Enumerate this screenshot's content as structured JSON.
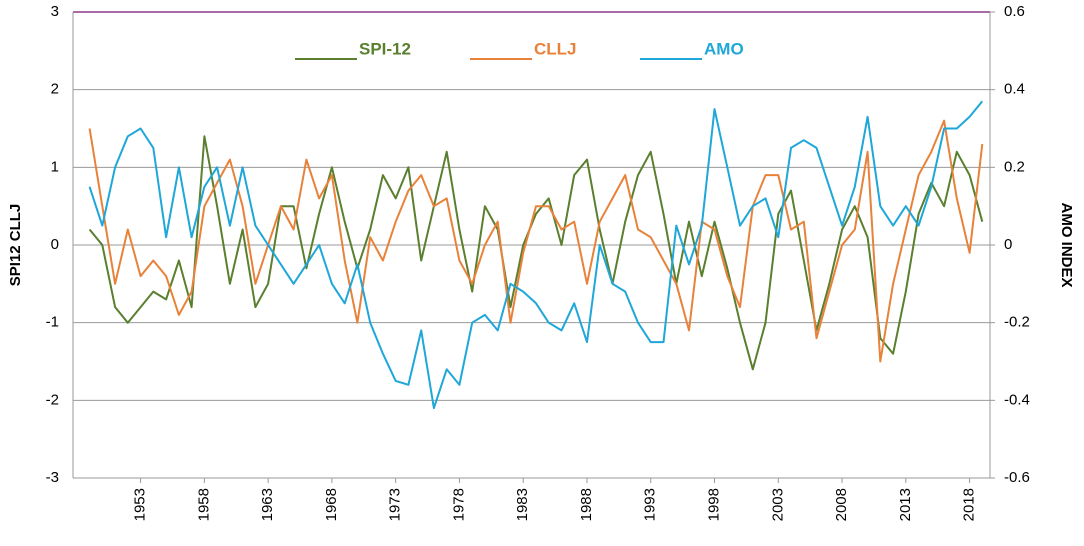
{
  "chart_data": {
    "type": "line",
    "y_label": "SPI12   CLLJ",
    "y2_label": "AMO INDEX",
    "legend": "top",
    "grid": true,
    "xlim": [
      1947.7,
      2019.6
    ],
    "xticks": [
      1953,
      1958,
      1963,
      1968,
      1973,
      1978,
      1983,
      1988,
      1993,
      1998,
      2003,
      2008,
      2013,
      2018
    ],
    "ylim": [
      -3,
      3
    ],
    "yticks": [
      -3,
      -2,
      -1,
      0,
      1,
      2,
      3
    ],
    "y2lim": [
      -0.6,
      0.6
    ],
    "y2ticks": [
      -0.6,
      -0.4,
      -0.2,
      0,
      0.2,
      0.4,
      0.6
    ],
    "x": [
      1949,
      1950,
      1951,
      1952,
      1953,
      1954,
      1955,
      1956,
      1957,
      1958,
      1959,
      1960,
      1961,
      1962,
      1963,
      1964,
      1965,
      1966,
      1967,
      1968,
      1969,
      1970,
      1971,
      1972,
      1973,
      1974,
      1975,
      1976,
      1977,
      1978,
      1979,
      1980,
      1981,
      1982,
      1983,
      1984,
      1985,
      1986,
      1987,
      1988,
      1989,
      1990,
      1991,
      1992,
      1993,
      1994,
      1995,
      1996,
      1997,
      1998,
      1999,
      2000,
      2001,
      2002,
      2003,
      2004,
      2005,
      2006,
      2007,
      2008,
      2009,
      2010,
      2011,
      2012,
      2013,
      2014,
      2015,
      2016,
      2017,
      2018,
      2019
    ],
    "series": [
      {
        "name": "SPI-12",
        "color": "#5a7f2e",
        "axis": "y",
        "values": [
          0.2,
          0,
          -0.8,
          -1.0,
          -0.8,
          -0.6,
          -0.7,
          -0.2,
          -0.8,
          1.4,
          0.5,
          -0.5,
          0.2,
          -0.8,
          -0.5,
          0.5,
          0.5,
          -0.3,
          0.4,
          1.0,
          0.3,
          -0.3,
          0.2,
          0.9,
          0.6,
          1.0,
          -0.2,
          0.5,
          1.2,
          0.2,
          -0.6,
          0.5,
          0.2,
          -0.8,
          0.0,
          0.4,
          0.6,
          0.0,
          0.9,
          1.1,
          0.2,
          -0.5,
          0.3,
          0.9,
          1.2,
          0.4,
          -0.5,
          0.3,
          -0.4,
          0.3,
          -0.3,
          -1.0,
          -1.6,
          -1.0,
          0.4,
          0.7,
          -0.2,
          -1.1,
          -0.5,
          0.2,
          0.5,
          0.1,
          -1.2,
          -1.4,
          -0.6,
          0.4,
          0.8,
          0.5,
          1.2,
          0.9,
          0.3
        ]
      },
      {
        "name": "CLLJ",
        "color": "#e8823a",
        "axis": "y",
        "values": [
          1.5,
          0.5,
          -0.5,
          0.2,
          -0.4,
          -0.2,
          -0.4,
          -0.9,
          -0.6,
          0.5,
          0.8,
          1.1,
          0.5,
          -0.5,
          0.0,
          0.5,
          0.2,
          1.1,
          0.6,
          0.9,
          -0.2,
          -1.0,
          0.1,
          -0.2,
          0.3,
          0.7,
          0.9,
          0.5,
          0.6,
          -0.2,
          -0.5,
          0.0,
          0.3,
          -1.0,
          -0.1,
          0.5,
          0.5,
          0.2,
          0.3,
          -0.5,
          0.3,
          0.6,
          0.9,
          0.2,
          0.1,
          -0.2,
          -0.5,
          -1.1,
          0.3,
          0.2,
          -0.4,
          -0.8,
          0.5,
          0.9,
          0.9,
          0.2,
          0.3,
          -1.2,
          -0.6,
          0.0,
          0.2,
          1.2,
          -1.5,
          -0.5,
          0.2,
          0.9,
          1.2,
          1.6,
          0.6,
          -0.1,
          1.3
        ]
      },
      {
        "name": "AMO",
        "color": "#1ea7d8",
        "axis": "y2",
        "values": [
          0.15,
          0.05,
          0.2,
          0.28,
          0.3,
          0.25,
          0.02,
          0.2,
          0.02,
          0.15,
          0.2,
          0.05,
          0.2,
          0.05,
          0.0,
          -0.05,
          -0.1,
          -0.05,
          0.0,
          -0.1,
          -0.15,
          -0.05,
          -0.2,
          -0.28,
          -0.35,
          -0.36,
          -0.22,
          -0.42,
          -0.32,
          -0.36,
          -0.2,
          -0.18,
          -0.22,
          -0.1,
          -0.12,
          -0.15,
          -0.2,
          -0.22,
          -0.15,
          -0.25,
          0.0,
          -0.1,
          -0.12,
          -0.2,
          -0.25,
          -0.25,
          0.05,
          -0.05,
          0.05,
          0.35,
          0.2,
          0.05,
          0.1,
          0.12,
          0.02,
          0.25,
          0.27,
          0.25,
          0.15,
          0.05,
          0.15,
          0.33,
          0.1,
          0.05,
          0.1,
          0.05,
          0.15,
          0.3,
          0.3,
          0.33,
          0.37
        ]
      }
    ]
  }
}
